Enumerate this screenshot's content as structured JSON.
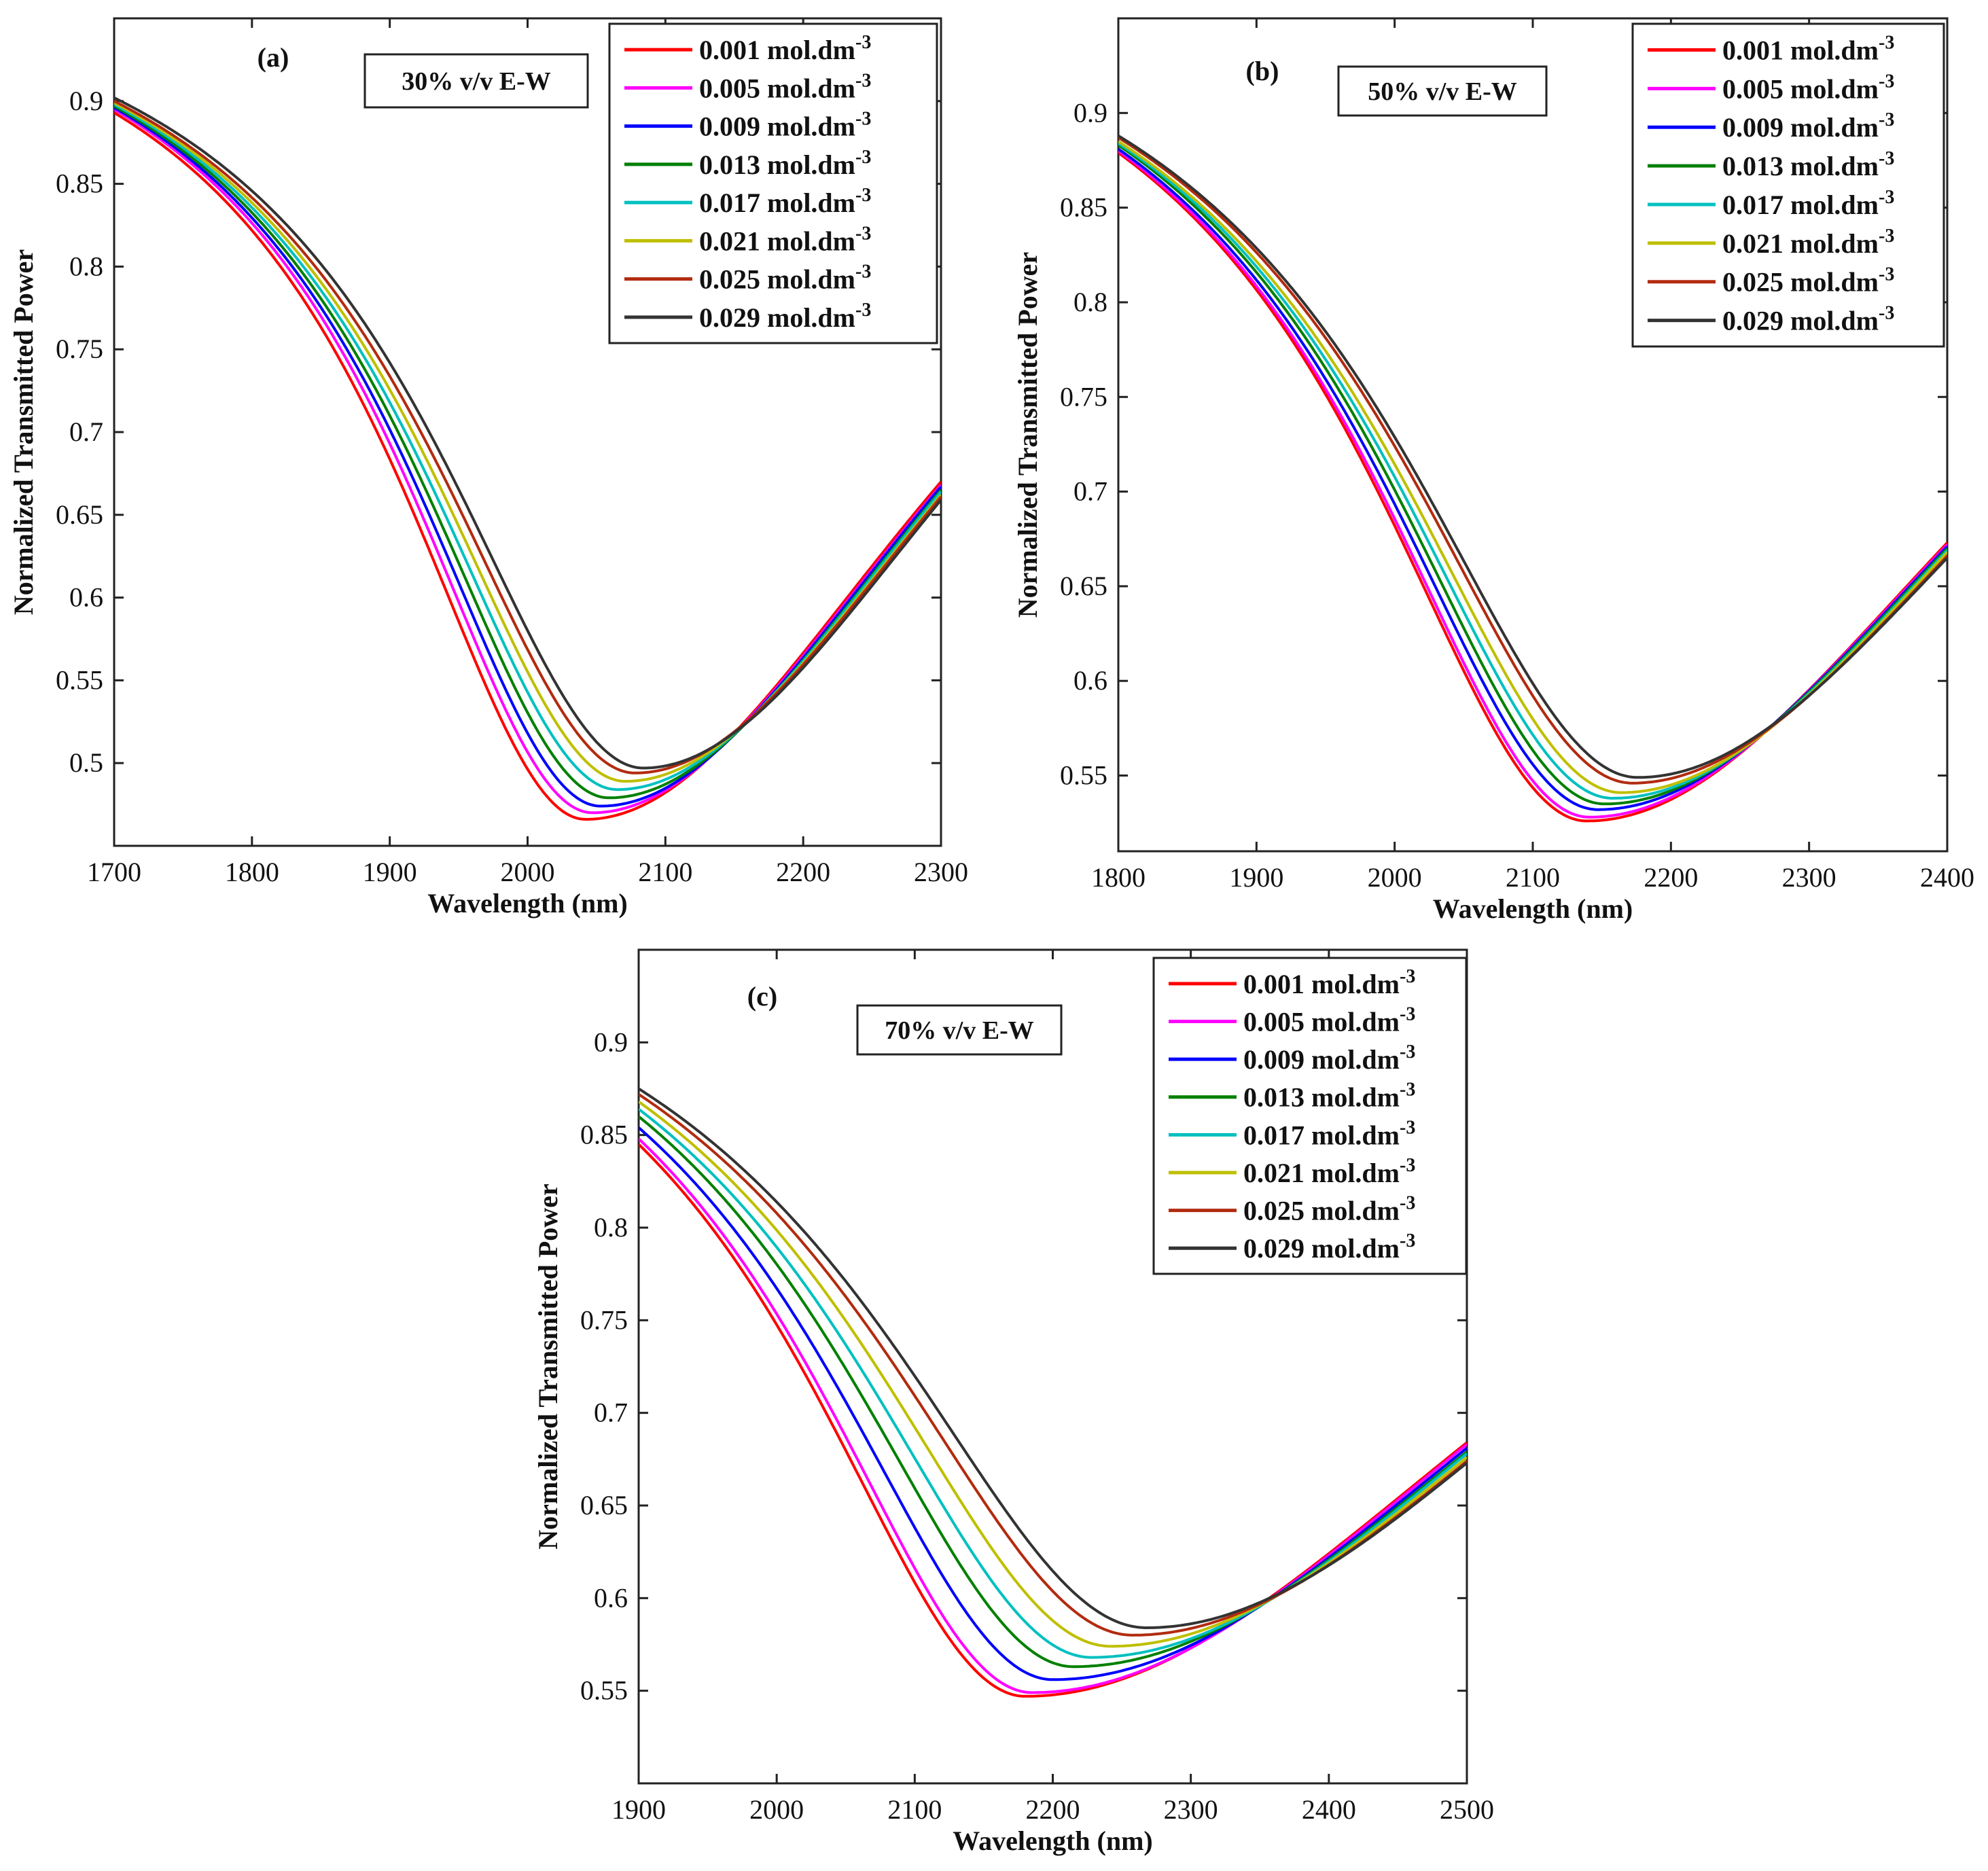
{
  "chart_data": [
    {
      "type": "line",
      "panel_label": "(a)",
      "condition": "30% v/v E-W",
      "xlabel": "Wavelength (nm)",
      "ylabel": "Normalized Transmitted Power",
      "xlim": [
        1700,
        2300
      ],
      "ylim": [
        0.45,
        0.95
      ],
      "xticks": [
        "1700",
        "1800",
        "1900",
        "2000",
        "2100",
        "2200",
        "2300"
      ],
      "yticks": [
        "0.5",
        "0.55",
        "0.6",
        "0.65",
        "0.7",
        "0.75",
        "0.8",
        "0.85",
        "0.9"
      ],
      "legend_position": "top-right",
      "legend_unit": "mol.dm",
      "legend_exp": "-3",
      "series": [
        {
          "name": "0.001",
          "color": "#ff0000",
          "x0": 1700,
          "y0": 0.893,
          "xmin": 2042,
          "ymin": 0.466,
          "x1": 2300,
          "y1": 0.67
        },
        {
          "name": "0.005",
          "color": "#ff00ff",
          "x0": 1700,
          "y0": 0.895,
          "xmin": 2047,
          "ymin": 0.47,
          "x1": 2300,
          "y1": 0.668
        },
        {
          "name": "0.009",
          "color": "#0000ff",
          "x0": 1700,
          "y0": 0.896,
          "xmin": 2053,
          "ymin": 0.474,
          "x1": 2300,
          "y1": 0.667
        },
        {
          "name": "0.013",
          "color": "#008000",
          "x0": 1700,
          "y0": 0.897,
          "xmin": 2059,
          "ymin": 0.479,
          "x1": 2300,
          "y1": 0.665
        },
        {
          "name": "0.017",
          "color": "#00c0c0",
          "x0": 1700,
          "y0": 0.898,
          "xmin": 2065,
          "ymin": 0.484,
          "x1": 2300,
          "y1": 0.664
        },
        {
          "name": "0.021",
          "color": "#bfbf00",
          "x0": 1700,
          "y0": 0.899,
          "xmin": 2071,
          "ymin": 0.489,
          "x1": 2300,
          "y1": 0.662
        },
        {
          "name": "0.025",
          "color": "#b22b0f",
          "x0": 1700,
          "y0": 0.9,
          "xmin": 2078,
          "ymin": 0.494,
          "x1": 2300,
          "y1": 0.661
        },
        {
          "name": "0.029",
          "color": "#333333",
          "x0": 1700,
          "y0": 0.902,
          "xmin": 2084,
          "ymin": 0.497,
          "x1": 2300,
          "y1": 0.659
        }
      ]
    },
    {
      "type": "line",
      "panel_label": "(b)",
      "condition": "50% v/v E-W",
      "xlabel": "Wavelength (nm)",
      "ylabel": "Normalized Transmitted Power",
      "xlim": [
        1800,
        2400
      ],
      "ylim": [
        0.51,
        0.95
      ],
      "xticks": [
        "1800",
        "1900",
        "2000",
        "2100",
        "2200",
        "2300",
        "2400"
      ],
      "yticks": [
        "0.55",
        "0.6",
        "0.65",
        "0.7",
        "0.75",
        "0.8",
        "0.85",
        "0.9"
      ],
      "legend_position": "top-right",
      "legend_unit": "mol.dm",
      "legend_exp": "-3",
      "series": [
        {
          "name": "0.001",
          "color": "#ff0000",
          "x0": 1800,
          "y0": 0.879,
          "xmin": 2139,
          "ymin": 0.526,
          "x1": 2400,
          "y1": 0.673
        },
        {
          "name": "0.005",
          "color": "#ff00ff",
          "x0": 1800,
          "y0": 0.88,
          "xmin": 2141,
          "ymin": 0.528,
          "x1": 2400,
          "y1": 0.672
        },
        {
          "name": "0.009",
          "color": "#0000ff",
          "x0": 1800,
          "y0": 0.881,
          "xmin": 2147,
          "ymin": 0.532,
          "x1": 2400,
          "y1": 0.671
        },
        {
          "name": "0.013",
          "color": "#008000",
          "x0": 1800,
          "y0": 0.883,
          "xmin": 2152,
          "ymin": 0.535,
          "x1": 2400,
          "y1": 0.67
        },
        {
          "name": "0.017",
          "color": "#00c0c0",
          "x0": 1800,
          "y0": 0.884,
          "xmin": 2158,
          "ymin": 0.538,
          "x1": 2400,
          "y1": 0.669
        },
        {
          "name": "0.021",
          "color": "#bfbf00",
          "x0": 1800,
          "y0": 0.885,
          "xmin": 2164,
          "ymin": 0.541,
          "x1": 2400,
          "y1": 0.668
        },
        {
          "name": "0.025",
          "color": "#b22b0f",
          "x0": 1800,
          "y0": 0.887,
          "xmin": 2172,
          "ymin": 0.546,
          "x1": 2400,
          "y1": 0.666
        },
        {
          "name": "0.029",
          "color": "#333333",
          "x0": 1800,
          "y0": 0.888,
          "xmin": 2176,
          "ymin": 0.549,
          "x1": 2400,
          "y1": 0.665
        }
      ]
    },
    {
      "type": "line",
      "panel_label": "(c)",
      "condition": "70% v/v E-W",
      "xlabel": "Wavelength (nm)",
      "ylabel": "Normalized Transmitted Power",
      "xlim": [
        1900,
        2500
      ],
      "ylim": [
        0.5,
        0.95
      ],
      "xticks": [
        "1900",
        "2000",
        "2100",
        "2200",
        "2300",
        "2400",
        "2500"
      ],
      "yticks": [
        "0.55",
        "0.6",
        "0.65",
        "0.7",
        "0.75",
        "0.8",
        "0.85",
        "0.9"
      ],
      "legend_position": "top-right",
      "legend_unit": "mol.dm",
      "legend_exp": "-3",
      "series": [
        {
          "name": "0.001",
          "color": "#ff0000",
          "x0": 1900,
          "y0": 0.845,
          "xmin": 2180,
          "ymin": 0.547,
          "x1": 2500,
          "y1": 0.684
        },
        {
          "name": "0.005",
          "color": "#ff00ff",
          "x0": 1900,
          "y0": 0.848,
          "xmin": 2185,
          "ymin": 0.549,
          "x1": 2500,
          "y1": 0.683
        },
        {
          "name": "0.009",
          "color": "#0000ff",
          "x0": 1900,
          "y0": 0.854,
          "xmin": 2200,
          "ymin": 0.556,
          "x1": 2500,
          "y1": 0.681
        },
        {
          "name": "0.013",
          "color": "#008000",
          "x0": 1900,
          "y0": 0.86,
          "xmin": 2215,
          "ymin": 0.563,
          "x1": 2500,
          "y1": 0.679
        },
        {
          "name": "0.017",
          "color": "#00c0c0",
          "x0": 1900,
          "y0": 0.864,
          "xmin": 2228,
          "ymin": 0.568,
          "x1": 2500,
          "y1": 0.678
        },
        {
          "name": "0.021",
          "color": "#bfbf00",
          "x0": 1900,
          "y0": 0.868,
          "xmin": 2242,
          "ymin": 0.574,
          "x1": 2500,
          "y1": 0.676
        },
        {
          "name": "0.025",
          "color": "#b22b0f",
          "x0": 1900,
          "y0": 0.872,
          "xmin": 2258,
          "ymin": 0.58,
          "x1": 2500,
          "y1": 0.674
        },
        {
          "name": "0.029",
          "color": "#333333",
          "x0": 1900,
          "y0": 0.875,
          "xmin": 2268,
          "ymin": 0.584,
          "x1": 2500,
          "y1": 0.673
        }
      ]
    }
  ]
}
